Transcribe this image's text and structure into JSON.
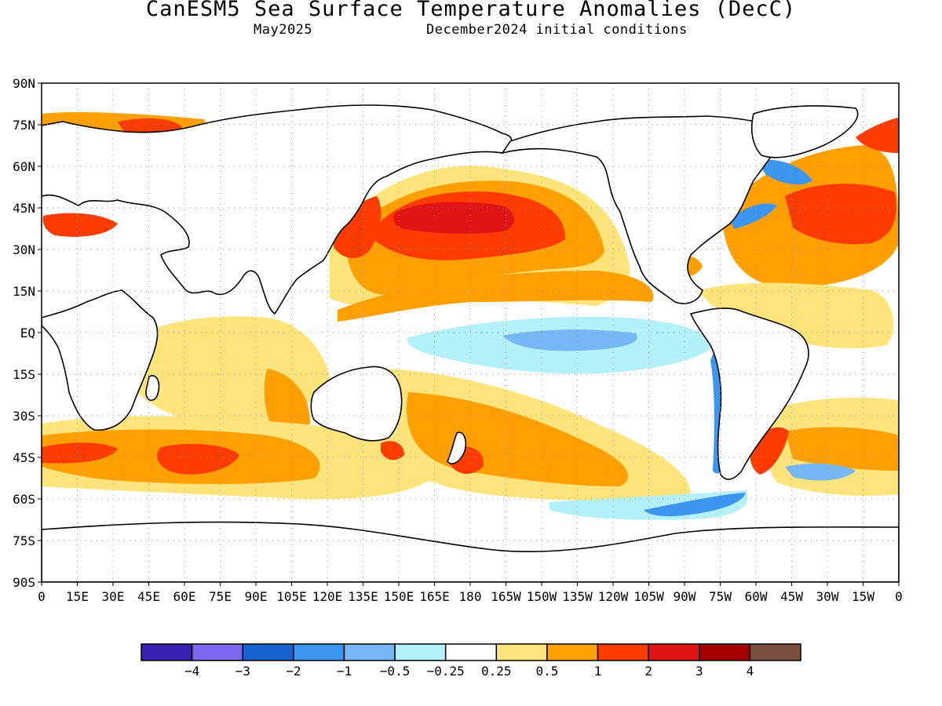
{
  "title": "CanESM5 Sea Surface Temperature Anomalies (DecC)",
  "subtitle_left": "May2025",
  "subtitle_right": "December2024 initial conditions",
  "map": {
    "lat_labels": [
      "90N",
      "75N",
      "60N",
      "45N",
      "30N",
      "15N",
      "EQ",
      "15S",
      "30S",
      "45S",
      "60S",
      "75S",
      "90S"
    ],
    "lon_labels": [
      "0",
      "15E",
      "30E",
      "45E",
      "60E",
      "75E",
      "90E",
      "105E",
      "120E",
      "135E",
      "150E",
      "165E",
      "180",
      "165W",
      "150W",
      "135W",
      "120W",
      "105W",
      "90W",
      "75W",
      "60W",
      "45W",
      "30W",
      "15W",
      "0"
    ],
    "grid": true
  },
  "colorbar": {
    "colors": [
      "#3a1fb5",
      "#7b68ee",
      "#1663cf",
      "#3c96f0",
      "#78b7f5",
      "#b4f0fa",
      "#ffffff",
      "#ffe47c",
      "#ffa000",
      "#ff3c00",
      "#e01414",
      "#a50000",
      "#7a5040"
    ],
    "labels": [
      "-4",
      "-3",
      "-2",
      "-1",
      "-0.5",
      "-0.25",
      "0.25",
      "0.5",
      "1",
      "2",
      "3",
      "4"
    ]
  }
}
